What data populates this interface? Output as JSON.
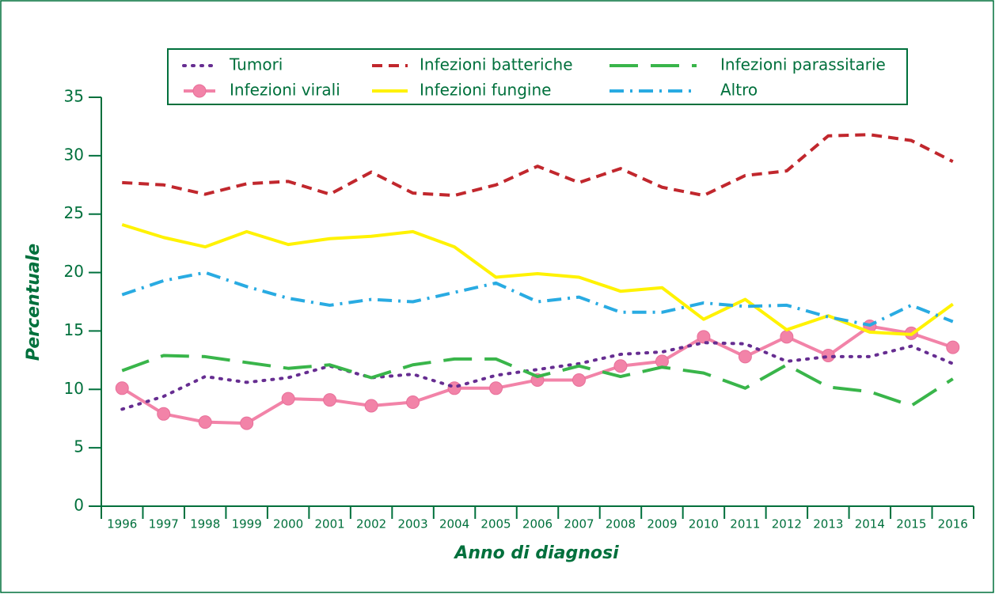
{
  "chart_data": {
    "type": "line",
    "x_label": "Anno di diagnosi",
    "y_label": "Percentuale",
    "categories": [
      "1996",
      "1997",
      "1998",
      "1999",
      "2000",
      "2001",
      "2002",
      "2003",
      "2004",
      "2005",
      "2006",
      "2007",
      "2008",
      "2009",
      "2010",
      "2011",
      "2012",
      "2013",
      "2014",
      "2015",
      "2016"
    ],
    "ylim": [
      0,
      35
    ],
    "yticks": [
      0,
      5,
      10,
      15,
      20,
      25,
      30,
      35
    ],
    "grid": false,
    "legend": "top",
    "series": [
      {
        "name": "Tumori",
        "color": "#662d91",
        "style": "dotted",
        "values": [
          8.3,
          9.4,
          11.1,
          10.6,
          11.0,
          12.0,
          11.0,
          11.3,
          10.2,
          11.2,
          11.7,
          12.2,
          13.0,
          13.2,
          14.0,
          13.9,
          12.4,
          12.8,
          12.8,
          13.7,
          12.2
        ]
      },
      {
        "name": "Infezioni batteriche",
        "color": "#c1272d",
        "style": "dashed",
        "values": [
          27.7,
          27.5,
          26.7,
          27.6,
          27.8,
          26.7,
          28.6,
          26.8,
          26.6,
          27.5,
          29.1,
          27.7,
          28.9,
          27.3,
          26.6,
          28.3,
          28.7,
          31.7,
          31.8,
          31.3,
          29.5
        ]
      },
      {
        "name": "Infezioni parassitarie",
        "color": "#39b54a",
        "style": "longdash",
        "values": [
          11.6,
          12.9,
          12.8,
          12.3,
          11.8,
          12.1,
          11.0,
          12.1,
          12.6,
          12.6,
          11.1,
          12.0,
          11.1,
          11.9,
          11.4,
          10.1,
          12.1,
          10.2,
          9.8,
          8.6,
          10.9
        ]
      },
      {
        "name": "Infezioni virali",
        "color": "#f283a8",
        "style": "solid",
        "marker": "circle",
        "values": [
          10.1,
          7.9,
          7.2,
          7.1,
          9.2,
          9.1,
          8.6,
          8.9,
          10.1,
          10.1,
          10.8,
          10.8,
          12.0,
          12.4,
          14.5,
          12.8,
          14.5,
          12.9,
          15.4,
          14.8,
          13.6
        ]
      },
      {
        "name": "Infezioni fungine",
        "color": "#fff200",
        "style": "solid",
        "values": [
          24.1,
          23.0,
          22.2,
          23.5,
          22.4,
          22.9,
          23.1,
          23.5,
          22.2,
          19.6,
          19.9,
          19.6,
          18.4,
          18.7,
          16.0,
          17.7,
          15.1,
          16.3,
          14.9,
          14.7,
          17.3
        ]
      },
      {
        "name": "Altro",
        "color": "#29abe2",
        "style": "dashdot",
        "values": [
          18.1,
          19.3,
          20.0,
          18.8,
          17.8,
          17.2,
          17.7,
          17.5,
          18.3,
          19.1,
          17.5,
          17.9,
          16.6,
          16.6,
          17.4,
          17.1,
          17.2,
          16.2,
          15.5,
          17.2,
          15.8
        ]
      }
    ]
  }
}
